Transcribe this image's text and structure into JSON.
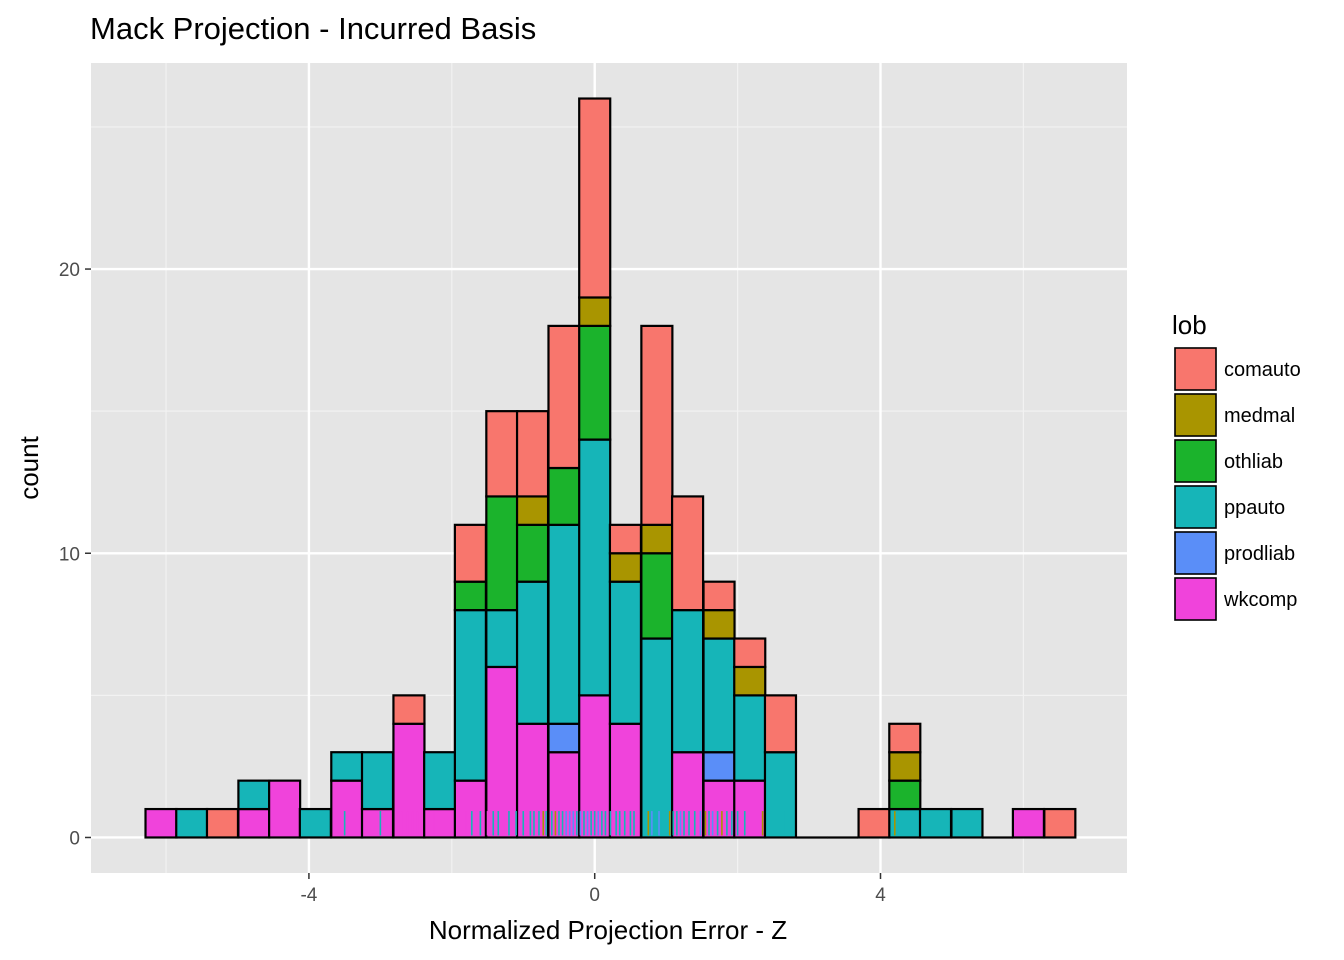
{
  "chart_data": {
    "type": "bar",
    "subtype": "stacked-histogram-with-rug",
    "title": "Mack Projection - Incurred Basis",
    "xlabel": "Normalized Projection Error - Z",
    "ylabel": "count",
    "xlim": [
      -7.05,
      7.45
    ],
    "ylim": [
      -1.25,
      27.25
    ],
    "x_ticks": [
      -4,
      0,
      4
    ],
    "x_tick_labels": [
      "-4",
      "0",
      "4"
    ],
    "y_ticks": [
      0,
      10,
      20
    ],
    "y_tick_labels": [
      "0",
      "10",
      "20"
    ],
    "bin_width": 0.434,
    "grid": true,
    "panel_background": "#e5e5e5",
    "bar_outline": "#000000",
    "legend": {
      "title": "lob",
      "position": "right",
      "entries": [
        {
          "key": "comauto",
          "label": "comauto",
          "color": "#f8766d"
        },
        {
          "key": "medmal",
          "label": "medmal",
          "color": "#a99500"
        },
        {
          "key": "othliab",
          "label": "othliab",
          "color": "#1bb32c"
        },
        {
          "key": "ppauto",
          "label": "ppauto",
          "color": "#16b5b8"
        },
        {
          "key": "prodliab",
          "label": "prodliab",
          "color": "#5a8ef8"
        },
        {
          "key": "wkcomp",
          "label": "wkcomp",
          "color": "#f043db"
        }
      ]
    },
    "stack_order": [
      "wkcomp",
      "prodliab",
      "ppauto",
      "othliab",
      "medmal",
      "comauto"
    ],
    "bins": [
      {
        "x": -6.07,
        "wkcomp": 1
      },
      {
        "x": -5.64,
        "ppauto": 1
      },
      {
        "x": -5.21,
        "comauto": 1
      },
      {
        "x": -4.77,
        "wkcomp": 1,
        "ppauto": 1
      },
      {
        "x": -4.34,
        "wkcomp": 2
      },
      {
        "x": -3.91,
        "ppauto": 1
      },
      {
        "x": -3.47,
        "wkcomp": 2,
        "ppauto": 1
      },
      {
        "x": -3.04,
        "wkcomp": 1,
        "ppauto": 2
      },
      {
        "x": -2.6,
        "wkcomp": 4,
        "comauto": 1
      },
      {
        "x": -2.17,
        "wkcomp": 1,
        "ppauto": 2
      },
      {
        "x": -1.74,
        "wkcomp": 2,
        "ppauto": 6,
        "othliab": 1,
        "comauto": 2
      },
      {
        "x": -1.3,
        "wkcomp": 6,
        "ppauto": 2,
        "othliab": 4,
        "comauto": 3
      },
      {
        "x": -0.87,
        "wkcomp": 4,
        "ppauto": 5,
        "othliab": 2,
        "medmal": 1,
        "comauto": 3
      },
      {
        "x": -0.43,
        "wkcomp": 3,
        "prodliab": 1,
        "ppauto": 7,
        "othliab": 2,
        "comauto": 5
      },
      {
        "x": 0.0,
        "wkcomp": 5,
        "ppauto": 9,
        "othliab": 4,
        "medmal": 1,
        "comauto": 7
      },
      {
        "x": 0.43,
        "wkcomp": 4,
        "ppauto": 5,
        "medmal": 1,
        "comauto": 1
      },
      {
        "x": 0.87,
        "ppauto": 7,
        "othliab": 3,
        "medmal": 1,
        "comauto": 7
      },
      {
        "x": 1.3,
        "wkcomp": 3,
        "ppauto": 5,
        "comauto": 4
      },
      {
        "x": 1.74,
        "wkcomp": 2,
        "prodliab": 1,
        "ppauto": 4,
        "medmal": 1,
        "comauto": 1
      },
      {
        "x": 2.17,
        "wkcomp": 2,
        "ppauto": 3,
        "medmal": 1,
        "comauto": 1
      },
      {
        "x": 2.6,
        "ppauto": 3,
        "comauto": 2
      },
      {
        "x": 3.04
      },
      {
        "x": 3.47
      },
      {
        "x": 3.91,
        "comauto": 1
      },
      {
        "x": 4.34,
        "ppauto": 1,
        "othliab": 1,
        "medmal": 1,
        "comauto": 1
      },
      {
        "x": 4.77,
        "ppauto": 1
      },
      {
        "x": 5.21,
        "ppauto": 1
      },
      {
        "x": 5.64
      },
      {
        "x": 6.07,
        "wkcomp": 1
      },
      {
        "x": 6.51,
        "comauto": 1
      }
    ],
    "rug": [
      {
        "x": -3.55,
        "lob": "wkcomp"
      },
      {
        "x": -3.5,
        "lob": "ppauto"
      },
      {
        "x": -3.0,
        "lob": "ppauto"
      },
      {
        "x": -2.75,
        "lob": "wkcomp"
      },
      {
        "x": -2.7,
        "lob": "wkcomp"
      },
      {
        "x": -2.62,
        "lob": "wkcomp"
      },
      {
        "x": -2.55,
        "lob": "wkcomp"
      },
      {
        "x": -2.48,
        "lob": "wkcomp"
      },
      {
        "x": -2.25,
        "lob": "wkcomp"
      },
      {
        "x": -1.8,
        "lob": "wkcomp"
      },
      {
        "x": -1.72,
        "lob": "ppauto"
      },
      {
        "x": -1.6,
        "lob": "ppauto"
      },
      {
        "x": -1.5,
        "lob": "wkcomp"
      },
      {
        "x": -1.42,
        "lob": "ppauto"
      },
      {
        "x": -1.35,
        "lob": "ppauto"
      },
      {
        "x": -1.28,
        "lob": "wkcomp"
      },
      {
        "x": -1.2,
        "lob": "ppauto"
      },
      {
        "x": -1.1,
        "lob": "ppauto"
      },
      {
        "x": -1.0,
        "lob": "ppauto"
      },
      {
        "x": -0.95,
        "lob": "wkcomp"
      },
      {
        "x": -0.9,
        "lob": "ppauto"
      },
      {
        "x": -0.85,
        "lob": "ppauto"
      },
      {
        "x": -0.78,
        "lob": "ppauto"
      },
      {
        "x": -0.72,
        "lob": "medmal"
      },
      {
        "x": -0.68,
        "lob": "ppauto"
      },
      {
        "x": -0.6,
        "lob": "ppauto"
      },
      {
        "x": -0.55,
        "lob": "medmal"
      },
      {
        "x": -0.5,
        "lob": "ppauto"
      },
      {
        "x": -0.45,
        "lob": "ppauto"
      },
      {
        "x": -0.4,
        "lob": "prodliab"
      },
      {
        "x": -0.35,
        "lob": "prodliab"
      },
      {
        "x": -0.3,
        "lob": "prodliab"
      },
      {
        "x": -0.25,
        "lob": "ppauto"
      },
      {
        "x": -0.2,
        "lob": "prodliab"
      },
      {
        "x": -0.15,
        "lob": "ppauto"
      },
      {
        "x": -0.1,
        "lob": "prodliab"
      },
      {
        "x": -0.05,
        "lob": "ppauto"
      },
      {
        "x": 0.0,
        "lob": "ppauto"
      },
      {
        "x": 0.05,
        "lob": "prodliab"
      },
      {
        "x": 0.1,
        "lob": "ppauto"
      },
      {
        "x": 0.15,
        "lob": "ppauto"
      },
      {
        "x": 0.22,
        "lob": "ppauto"
      },
      {
        "x": 0.3,
        "lob": "ppauto"
      },
      {
        "x": 0.35,
        "lob": "ppauto"
      },
      {
        "x": 0.42,
        "lob": "ppauto"
      },
      {
        "x": 0.5,
        "lob": "ppauto"
      },
      {
        "x": 0.55,
        "lob": "ppauto"
      },
      {
        "x": 0.68,
        "lob": "ppauto"
      },
      {
        "x": 0.75,
        "lob": "medmal"
      },
      {
        "x": 0.8,
        "lob": "prodliab"
      },
      {
        "x": 0.85,
        "lob": "ppauto"
      },
      {
        "x": 0.9,
        "lob": "prodliab"
      },
      {
        "x": 0.95,
        "lob": "ppauto"
      },
      {
        "x": 1.0,
        "lob": "ppauto"
      },
      {
        "x": 1.05,
        "lob": "medmal"
      },
      {
        "x": 1.1,
        "lob": "ppauto"
      },
      {
        "x": 1.15,
        "lob": "ppauto"
      },
      {
        "x": 1.2,
        "lob": "prodliab"
      },
      {
        "x": 1.25,
        "lob": "ppauto"
      },
      {
        "x": 1.32,
        "lob": "ppauto"
      },
      {
        "x": 1.4,
        "lob": "ppauto"
      },
      {
        "x": 1.48,
        "lob": "prodliab"
      },
      {
        "x": 1.55,
        "lob": "medmal"
      },
      {
        "x": 1.6,
        "lob": "ppauto"
      },
      {
        "x": 1.65,
        "lob": "prodliab"
      },
      {
        "x": 1.72,
        "lob": "ppauto"
      },
      {
        "x": 1.78,
        "lob": "medmal"
      },
      {
        "x": 1.85,
        "lob": "ppauto"
      },
      {
        "x": 1.92,
        "lob": "ppauto"
      },
      {
        "x": 2.0,
        "lob": "ppauto"
      },
      {
        "x": 2.1,
        "lob": "ppauto"
      },
      {
        "x": 2.35,
        "lob": "medmal"
      },
      {
        "x": 2.65,
        "lob": "ppauto"
      },
      {
        "x": 4.2,
        "lob": "medmal"
      }
    ]
  }
}
